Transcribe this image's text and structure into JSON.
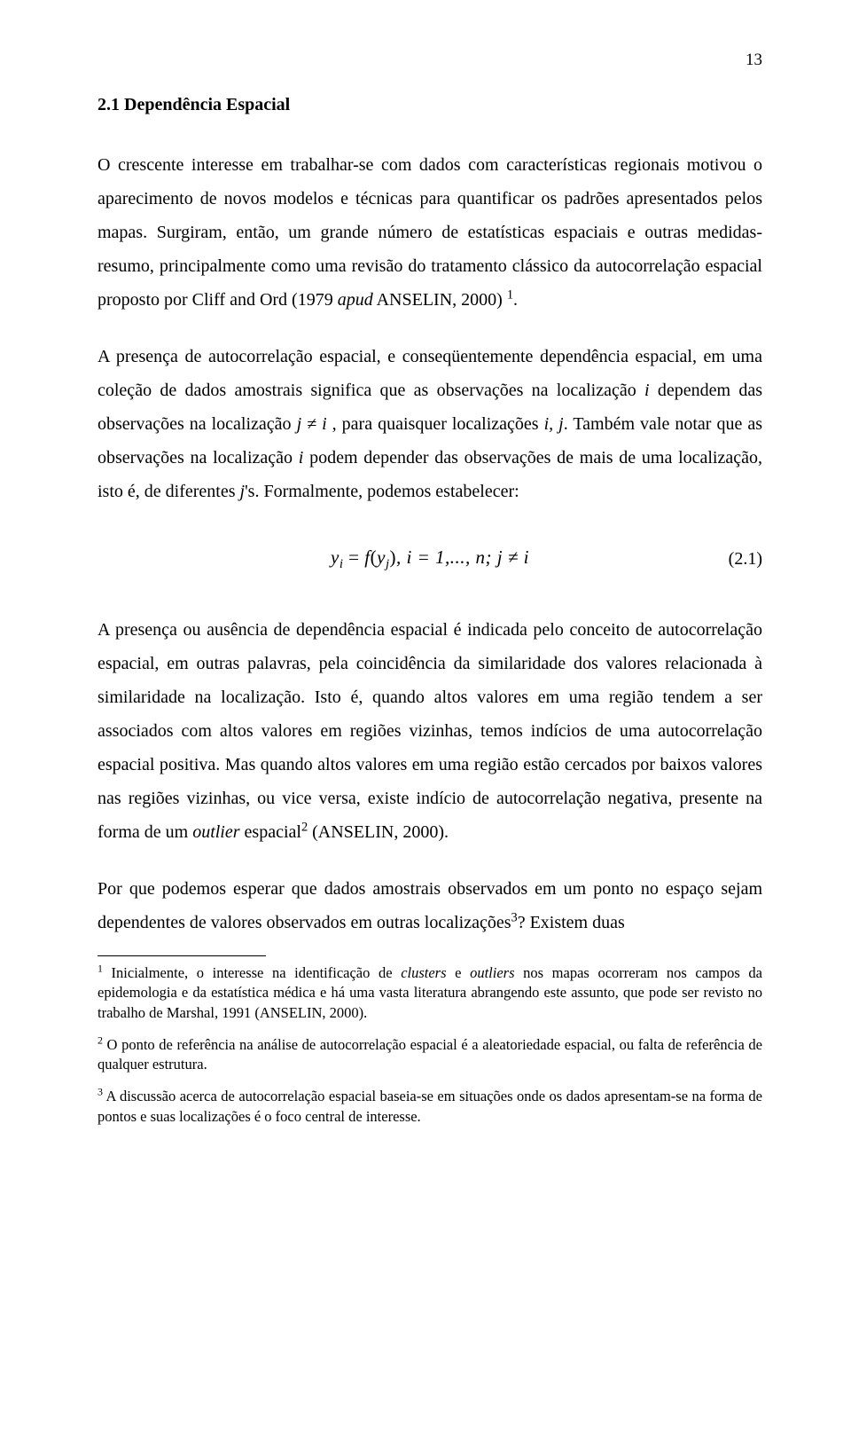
{
  "page": {
    "number": "13"
  },
  "section": {
    "heading": "2.1 Dependência Espacial"
  },
  "paragraphs": {
    "p1_a": "O crescente interesse em trabalhar-se com dados com características regionais motivou o aparecimento de novos modelos e técnicas para quantificar os padrões apresentados pelos mapas. Surgiram, então, um grande número de estatísticas espaciais e outras medidas-resumo, principalmente como uma revisão do tratamento clássico da autocorrelação espacial proposto por Cliff and Ord (1979 ",
    "p1_apud": "apud",
    "p1_b": " ANSELIN, 2000) ",
    "p1_sup": "1",
    "p1_c": ".",
    "p2_a": "A presença de autocorrelação espacial, e conseqüentemente dependência espacial, em uma coleção de dados amostrais significa que as observações na localização ",
    "p2_i1": "i",
    "p2_b": " dependem das observações na localização ",
    "p2_jnei": "j ≠ i",
    "p2_c": " , para quaisquer localizações ",
    "p2_ij": "i, j",
    "p2_d": ". Também vale notar que as observações na localização ",
    "p2_i2": "i",
    "p2_e": " podem depender das observações de mais de uma localização, isto é, de diferentes ",
    "p2_j": "j",
    "p2_f": "'s. Formalmente, podemos estabelecer:",
    "p3_a": "A presença ou ausência de dependência espacial é indicada pelo conceito de autocorrelação espacial, em outras palavras, pela coincidência da similaridade dos valores relacionada à similaridade na localização. Isto é, quando altos valores em uma região tendem a ser associados com altos valores em regiões vizinhas, temos indícios de uma autocorrelação espacial positiva. Mas quando altos valores em uma região estão cercados por baixos valores nas regiões vizinhas, ou vice versa, existe indício de autocorrelação negativa, presente na forma de um ",
    "p3_outlier": "outlier",
    "p3_b": " espacial",
    "p3_sup": "2",
    "p3_c": " (ANSELIN, 2000).",
    "p4_a": "Por que podemos esperar que dados amostrais observados em um ponto no espaço sejam dependentes de valores observados em outras localizações",
    "p4_sup": "3",
    "p4_b": "? Existem duas"
  },
  "equation": {
    "lhs_var": "y",
    "lhs_sub": "i",
    "eq": " = ",
    "f": "f",
    "lp": "(",
    "arg_var": "y",
    "arg_sub": "j",
    "rp": ")",
    "tail": ", i = 1,..., n; j ≠ i",
    "number": "(2.1)"
  },
  "footnotes": {
    "f1_sup": "1",
    "f1_a": " Inicialmente, o interesse na identificação de ",
    "f1_clusters": "clusters",
    "f1_b": " e ",
    "f1_outliers": "outliers",
    "f1_c": " nos mapas ocorreram nos campos da epidemologia e da estatística médica e há uma vasta literatura abrangendo este assunto, que pode ser revisto no trabalho de Marshal, 1991 (ANSELIN, 2000).",
    "f2_sup": "2",
    "f2": " O ponto de referência na análise de autocorrelação espacial é a aleatoriedade espacial, ou falta de referência de qualquer estrutura.",
    "f3_sup": "3",
    "f3": " A discussão acerca de autocorrelação espacial baseia-se em situações onde os dados apresentam-se na forma de pontos e suas localizações é o foco central de interesse."
  }
}
